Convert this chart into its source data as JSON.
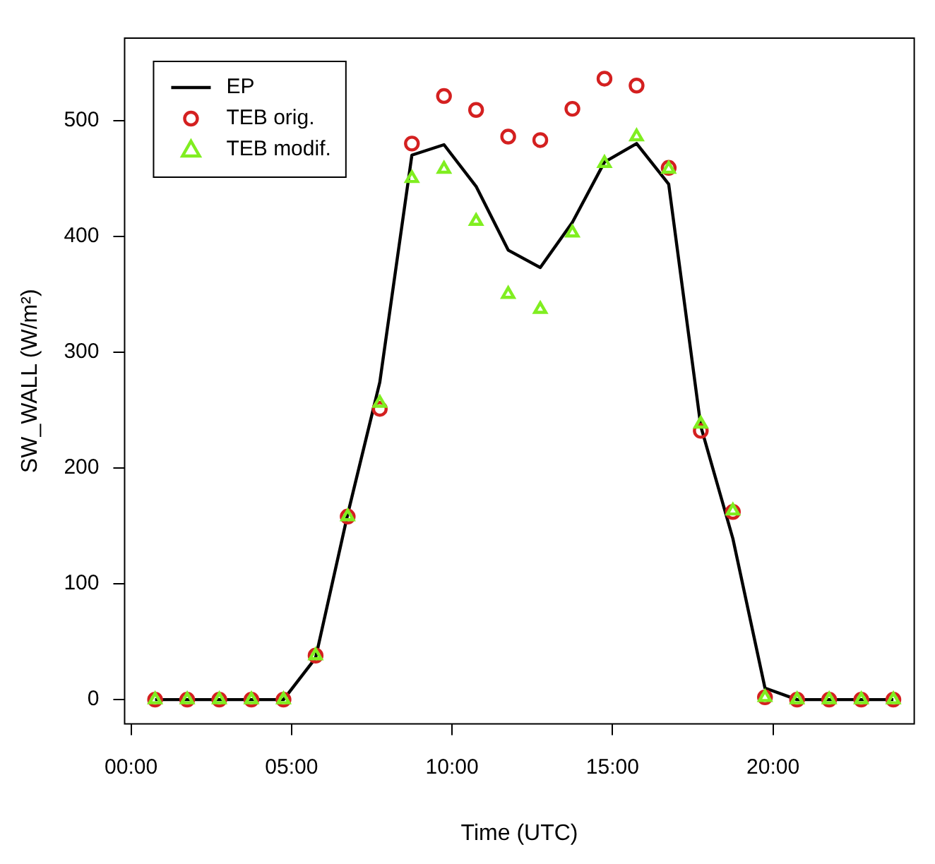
{
  "chart_data": {
    "type": "line",
    "xlabel": "Time (UTC)",
    "ylabel": "SW_WALL (W/m²)",
    "x": [
      0.75,
      1.75,
      2.75,
      3.75,
      4.75,
      5.75,
      6.75,
      7.75,
      8.75,
      9.75,
      10.75,
      11.75,
      12.75,
      13.75,
      14.75,
      15.75,
      16.75,
      17.75,
      18.75,
      19.75,
      20.75,
      21.75,
      22.75,
      23.75
    ],
    "series": [
      {
        "name": "EP",
        "type": "line",
        "color": "#000000",
        "marker": "none",
        "values": [
          0,
          0,
          0,
          0,
          0,
          36,
          160,
          274,
          470,
          479,
          443,
          388,
          373,
          412,
          464,
          480,
          445,
          236,
          139,
          10,
          0,
          0,
          0,
          0
        ]
      },
      {
        "name": "TEB orig.",
        "type": "scatter",
        "color": "#d42020",
        "marker": "circle",
        "values": [
          0,
          0,
          0,
          0,
          0,
          38,
          158,
          251,
          480,
          521,
          509,
          486,
          483,
          510,
          536,
          530,
          459,
          232,
          162,
          2,
          0,
          0,
          0,
          0
        ]
      },
      {
        "name": "TEB modif.",
        "type": "scatter",
        "color": "#80ee20",
        "marker": "triangle",
        "values": [
          0,
          0,
          0,
          0,
          0,
          38,
          158,
          256,
          450,
          458,
          413,
          350,
          337,
          403,
          463,
          486,
          458,
          238,
          163,
          2,
          0,
          0,
          0,
          0
        ]
      }
    ],
    "xlim": [
      -0.2,
      24.4
    ],
    "xticks": [
      {
        "value": 0,
        "label": "00:00"
      },
      {
        "value": 5,
        "label": "05:00"
      },
      {
        "value": 10,
        "label": "10:00"
      },
      {
        "value": 15,
        "label": "15:00"
      },
      {
        "value": 20,
        "label": "20:00"
      }
    ],
    "ylim": [
      -21,
      571
    ],
    "yticks": [
      0,
      100,
      200,
      300,
      400,
      500
    ],
    "grid": false,
    "legend": "top left"
  }
}
